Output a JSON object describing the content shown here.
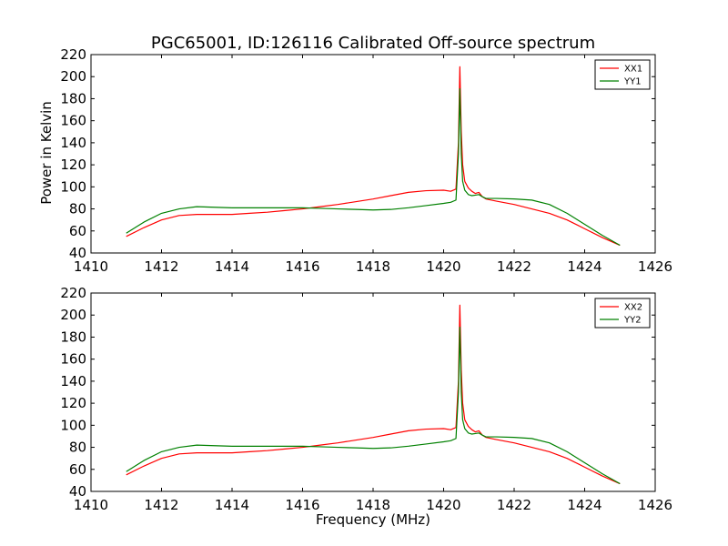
{
  "figure": {
    "title": "PGC65001, ID:126116 Calibrated Off-source spectrum",
    "xlabel": "Frequency (MHz)",
    "ylabel": "Power in Kelvin"
  },
  "chart_data": [
    {
      "type": "line",
      "title": "PGC65001, ID:126116 Calibrated Off-source spectrum",
      "xlabel": "",
      "ylabel": "Power in Kelvin",
      "xlim": [
        1410,
        1426
      ],
      "ylim": [
        40,
        220
      ],
      "xticks": [
        1410,
        1412,
        1414,
        1416,
        1418,
        1420,
        1422,
        1424,
        1426
      ],
      "yticks": [
        40,
        60,
        80,
        100,
        120,
        140,
        160,
        180,
        200,
        220
      ],
      "legend": "top-right",
      "grid": false,
      "series": [
        {
          "name": "XX1",
          "color": "#ff0000",
          "x": [
            1411.0,
            1411.5,
            1412.0,
            1412.5,
            1413.0,
            1413.5,
            1414.0,
            1414.5,
            1415.0,
            1415.5,
            1416.0,
            1416.5,
            1417.0,
            1417.5,
            1418.0,
            1418.5,
            1419.0,
            1419.5,
            1420.0,
            1420.2,
            1420.35,
            1420.42,
            1420.46,
            1420.5,
            1420.54,
            1420.6,
            1420.7,
            1420.8,
            1420.9,
            1421.0,
            1421.1,
            1421.2,
            1421.5,
            1422.0,
            1422.5,
            1423.0,
            1423.5,
            1424.0,
            1424.5,
            1425.0
          ],
          "y": [
            55,
            63,
            70,
            74,
            75,
            75,
            75,
            76,
            77,
            78.5,
            80,
            82,
            84,
            86.5,
            89,
            92,
            95,
            96.5,
            97,
            96,
            98,
            140,
            209,
            150,
            120,
            105,
            99,
            96,
            94,
            95,
            91,
            89,
            87,
            84,
            80,
            76,
            70,
            62,
            54,
            47
          ]
        },
        {
          "name": "YY1",
          "color": "#008000",
          "x": [
            1411.0,
            1411.5,
            1412.0,
            1412.5,
            1413.0,
            1413.5,
            1414.0,
            1414.5,
            1415.0,
            1415.5,
            1416.0,
            1416.5,
            1417.0,
            1417.5,
            1418.0,
            1418.5,
            1419.0,
            1419.5,
            1420.0,
            1420.2,
            1420.35,
            1420.42,
            1420.46,
            1420.5,
            1420.54,
            1420.6,
            1420.7,
            1420.8,
            1420.9,
            1421.0,
            1421.1,
            1421.2,
            1421.5,
            1422.0,
            1422.5,
            1423.0,
            1423.5,
            1424.0,
            1424.5,
            1425.0
          ],
          "y": [
            58,
            68,
            76,
            80,
            82,
            81.5,
            81,
            81,
            81,
            81,
            81,
            80.5,
            80,
            79.5,
            79,
            79.5,
            81,
            83,
            85,
            86,
            88,
            130,
            189,
            130,
            105,
            97,
            93,
            92,
            92.5,
            93,
            91,
            89.5,
            89.5,
            89,
            88,
            84,
            76,
            66,
            56,
            47
          ]
        }
      ]
    },
    {
      "type": "line",
      "title": "",
      "xlabel": "Frequency (MHz)",
      "ylabel": "",
      "xlim": [
        1410,
        1426
      ],
      "ylim": [
        40,
        220
      ],
      "xticks": [
        1410,
        1412,
        1414,
        1416,
        1418,
        1420,
        1422,
        1424,
        1426
      ],
      "yticks": [
        40,
        60,
        80,
        100,
        120,
        140,
        160,
        180,
        200,
        220
      ],
      "legend": "top-right",
      "grid": false,
      "series": [
        {
          "name": "XX2",
          "color": "#ff0000",
          "x": [
            1411.0,
            1411.5,
            1412.0,
            1412.5,
            1413.0,
            1413.5,
            1414.0,
            1414.5,
            1415.0,
            1415.5,
            1416.0,
            1416.5,
            1417.0,
            1417.5,
            1418.0,
            1418.5,
            1419.0,
            1419.5,
            1420.0,
            1420.2,
            1420.35,
            1420.42,
            1420.46,
            1420.5,
            1420.54,
            1420.6,
            1420.7,
            1420.8,
            1420.9,
            1421.0,
            1421.1,
            1421.2,
            1421.5,
            1422.0,
            1422.5,
            1423.0,
            1423.5,
            1424.0,
            1424.5,
            1425.0
          ],
          "y": [
            55,
            63,
            70,
            74,
            75,
            75,
            75,
            76,
            77,
            78.5,
            80,
            82,
            84,
            86.5,
            89,
            92,
            95,
            96.5,
            97,
            96,
            98,
            140,
            209,
            150,
            120,
            105,
            99,
            96,
            94,
            95,
            91,
            89,
            87,
            84,
            80,
            76,
            70,
            62,
            54,
            47
          ]
        },
        {
          "name": "YY2",
          "color": "#008000",
          "x": [
            1411.0,
            1411.5,
            1412.0,
            1412.5,
            1413.0,
            1413.5,
            1414.0,
            1414.5,
            1415.0,
            1415.5,
            1416.0,
            1416.5,
            1417.0,
            1417.5,
            1418.0,
            1418.5,
            1419.0,
            1419.5,
            1420.0,
            1420.2,
            1420.35,
            1420.42,
            1420.46,
            1420.5,
            1420.54,
            1420.6,
            1420.7,
            1420.8,
            1420.9,
            1421.0,
            1421.1,
            1421.2,
            1421.5,
            1422.0,
            1422.5,
            1423.0,
            1423.5,
            1424.0,
            1424.5,
            1425.0
          ],
          "y": [
            58,
            68,
            76,
            80,
            82,
            81.5,
            81,
            81,
            81,
            81,
            81,
            80.5,
            80,
            79.5,
            79,
            79.5,
            81,
            83,
            85,
            86,
            88,
            130,
            189,
            130,
            105,
            97,
            93,
            92,
            92.5,
            93,
            91,
            89.5,
            89.5,
            89,
            88,
            84,
            76,
            66,
            56,
            47
          ]
        }
      ]
    }
  ]
}
